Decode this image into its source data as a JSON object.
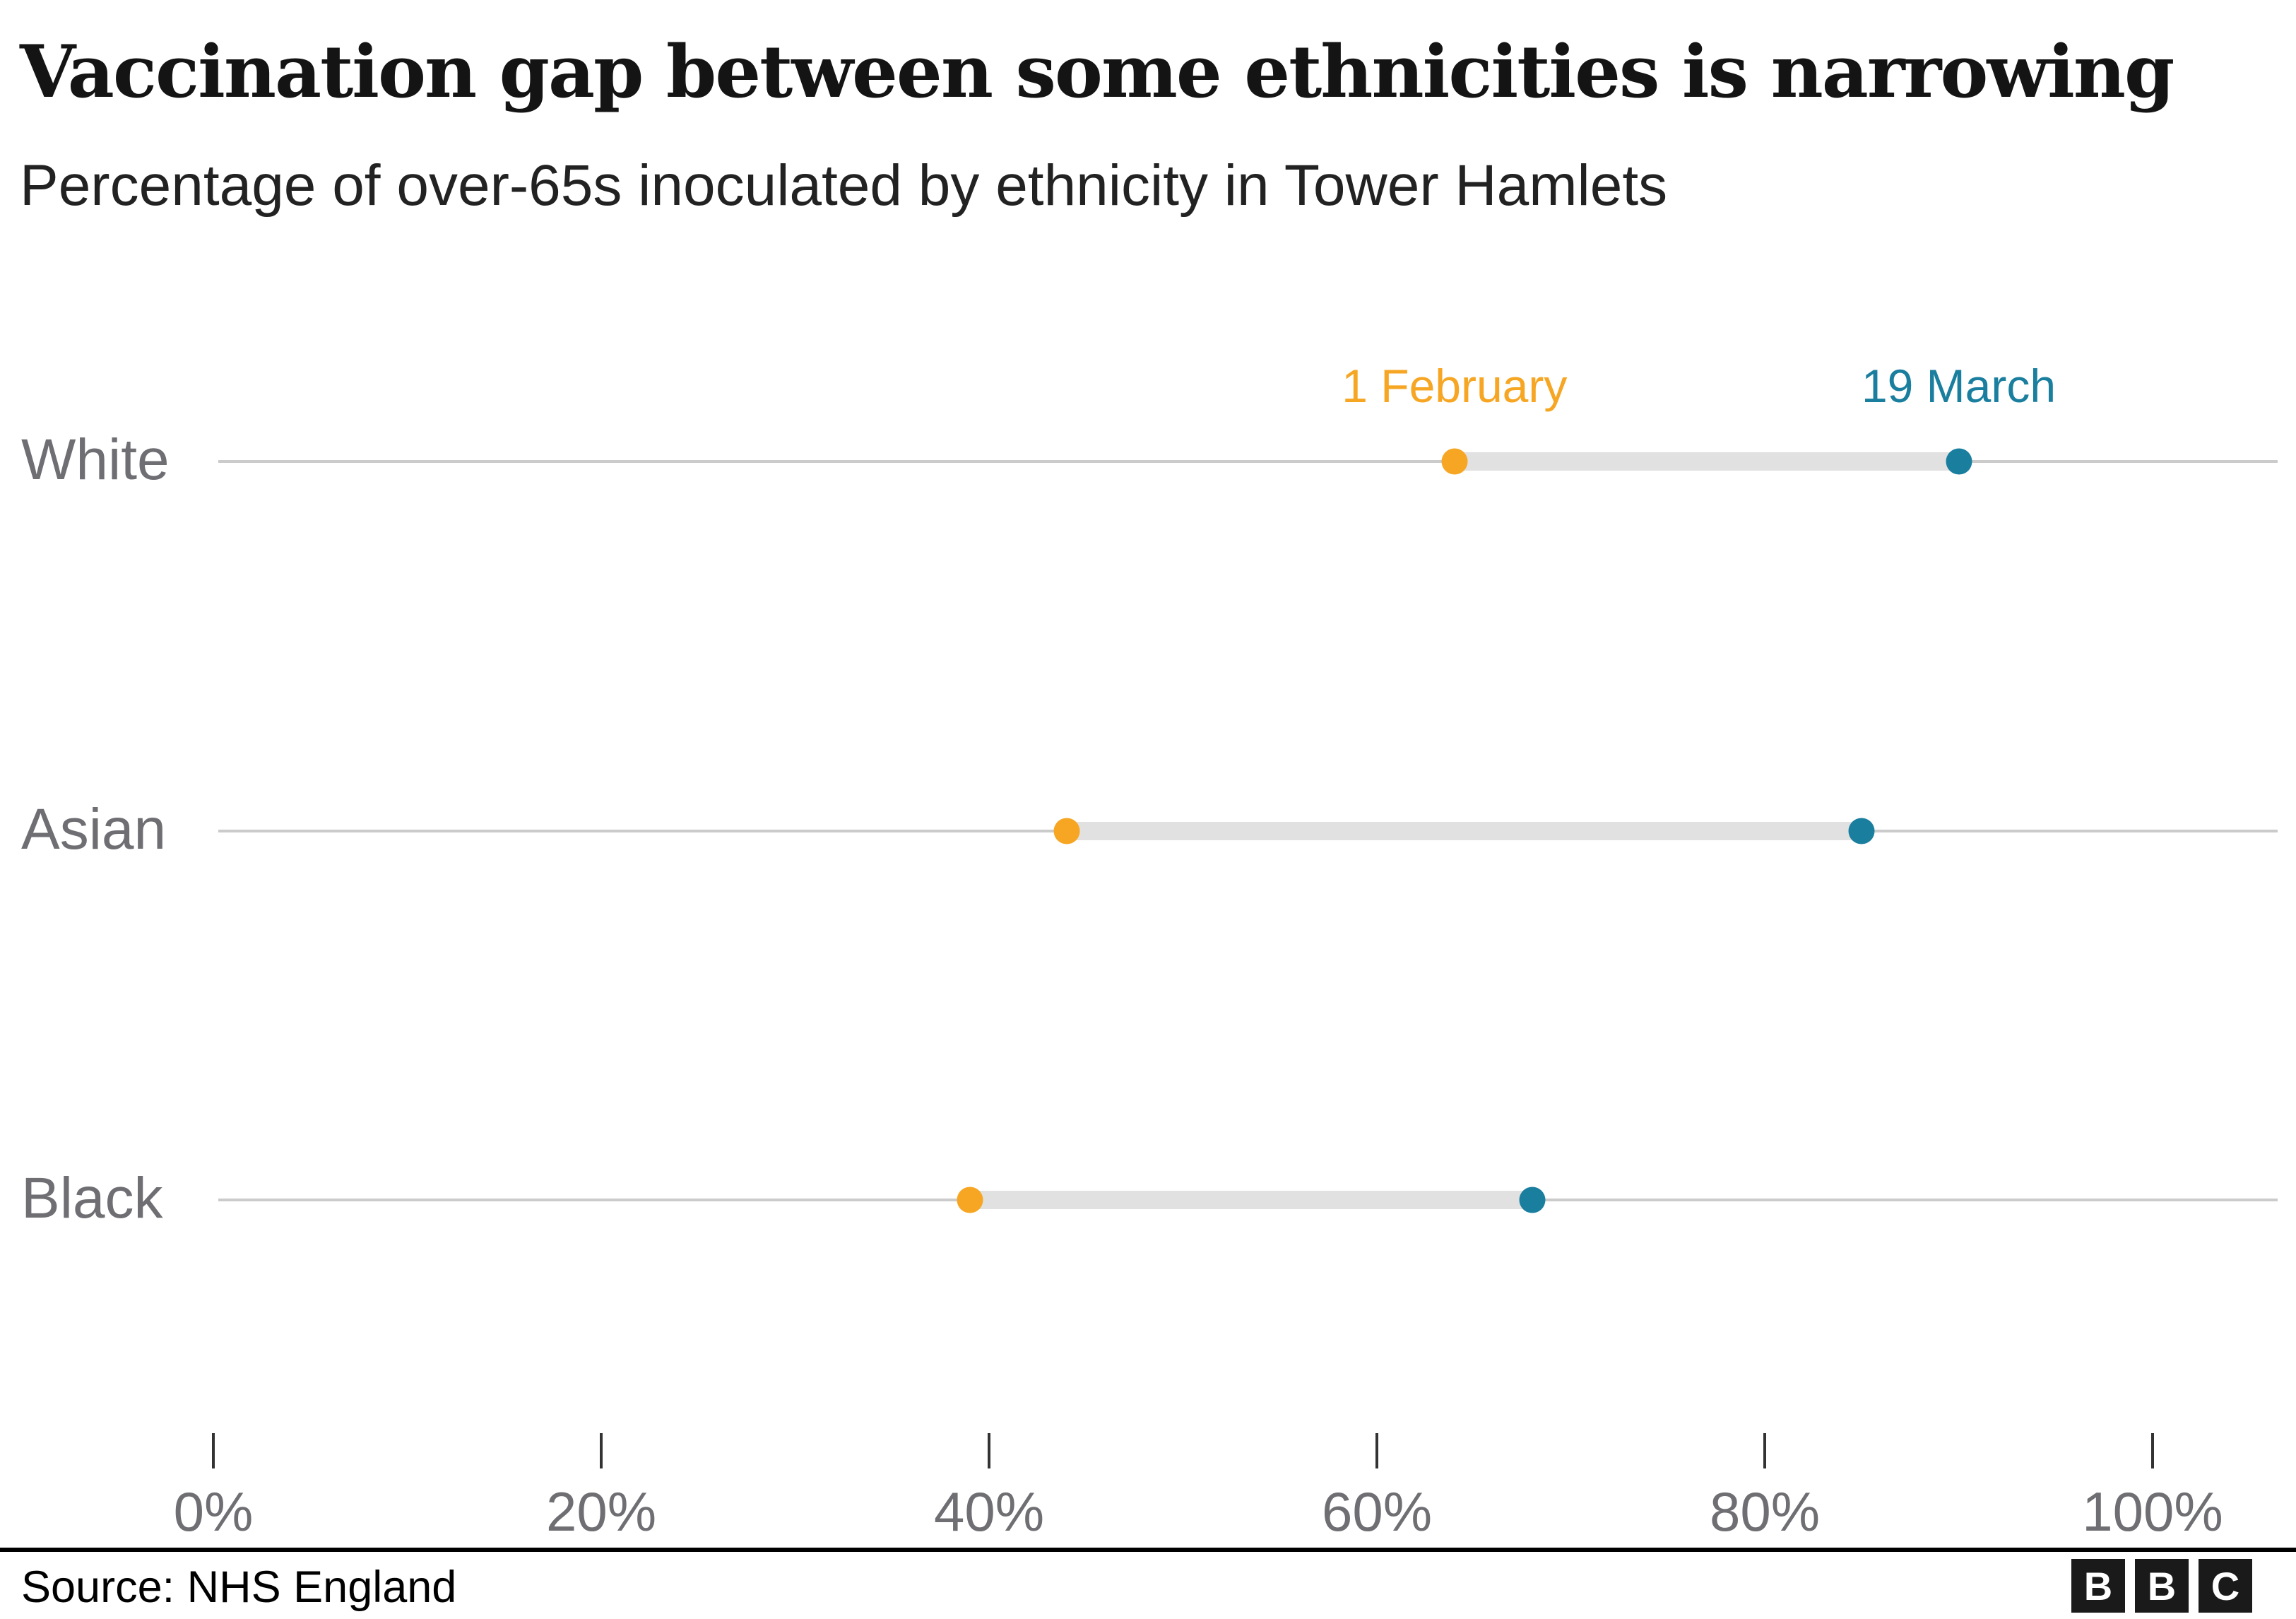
{
  "header": {
    "title": "Vaccination gap between some ethnicities is narrowing",
    "subtitle": "Percentage of over-65s inoculated by ethnicity in Tower Hamlets"
  },
  "colors": {
    "feb": "#F6A623",
    "mar": "#1A7E9E",
    "band": "#E1E1E1",
    "row_line": "#CBCBCB",
    "label_gray": "#6E6E73",
    "ink": "#141414"
  },
  "footer": {
    "source": "Source: NHS England",
    "logo_letters": [
      "B",
      "B",
      "C"
    ]
  },
  "chart_data": {
    "type": "scatter",
    "variant": "dumbbell",
    "title": "Vaccination gap between some ethnicities is narrowing",
    "subtitle": "Percentage of over-65s inoculated by ethnicity in Tower Hamlets",
    "categories": [
      "White",
      "Asian",
      "Black"
    ],
    "series": [
      {
        "name": "1 February",
        "values": [
          64,
          44,
          39
        ]
      },
      {
        "name": "19 March",
        "values": [
          90,
          85,
          68
        ]
      }
    ],
    "xlabel": "",
    "xlim": [
      0,
      100
    ],
    "x_ticks": [
      0,
      20,
      40,
      60,
      80,
      100
    ],
    "x_tick_labels": [
      "0%",
      "20%",
      "40%",
      "60%",
      "80%",
      "100%"
    ],
    "grid": false,
    "legend_position": "above-first-row"
  }
}
